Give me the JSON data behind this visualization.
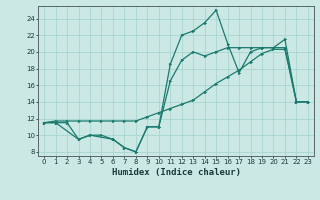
{
  "xlabel": "Humidex (Indice chaleur)",
  "xlim": [
    -0.5,
    23.5
  ],
  "ylim": [
    7.5,
    25.5
  ],
  "yticks": [
    8,
    10,
    12,
    14,
    16,
    18,
    20,
    22,
    24
  ],
  "xticks": [
    0,
    1,
    2,
    3,
    4,
    5,
    6,
    7,
    8,
    9,
    10,
    11,
    12,
    13,
    14,
    15,
    16,
    17,
    18,
    19,
    20,
    21,
    22,
    23
  ],
  "bg_color": "#cce8e4",
  "line_color": "#1a7a6e",
  "grid_color": "#a8d5d0",
  "line1_x": [
    0,
    1,
    2,
    3,
    4,
    5,
    6,
    7,
    8,
    9,
    10,
    11,
    12,
    13,
    14,
    15,
    16,
    17,
    18,
    19,
    20,
    21,
    22,
    23
  ],
  "line1_y": [
    11.5,
    11.7,
    11.7,
    11.7,
    11.7,
    11.7,
    11.7,
    11.7,
    11.7,
    12.2,
    12.7,
    13.2,
    13.7,
    14.2,
    15.2,
    16.2,
    17.0,
    17.8,
    18.8,
    19.8,
    20.3,
    20.3,
    14.0,
    14.0
  ],
  "line2_x": [
    0,
    1,
    3,
    4,
    6,
    7,
    8,
    9,
    10,
    11,
    12,
    13,
    14,
    15,
    16,
    17,
    18,
    19,
    20,
    21,
    22,
    23
  ],
  "line2_y": [
    11.5,
    11.5,
    9.5,
    10.0,
    9.5,
    8.5,
    8.0,
    11.0,
    11.0,
    18.5,
    22.0,
    22.5,
    23.5,
    25.0,
    21.0,
    17.5,
    20.0,
    20.5,
    20.5,
    21.5,
    14.0,
    14.0
  ],
  "line3_x": [
    0,
    1,
    2,
    3,
    4,
    5,
    6,
    7,
    8,
    9,
    10,
    11,
    12,
    13,
    14,
    15,
    16,
    17,
    18,
    19,
    20,
    21,
    22,
    23
  ],
  "line3_y": [
    11.5,
    11.5,
    11.5,
    9.5,
    10.0,
    10.0,
    9.5,
    8.5,
    8.0,
    11.0,
    11.0,
    16.5,
    19.0,
    20.0,
    19.5,
    20.0,
    20.5,
    20.5,
    20.5,
    20.5,
    20.5,
    20.5,
    14.0,
    14.0
  ]
}
